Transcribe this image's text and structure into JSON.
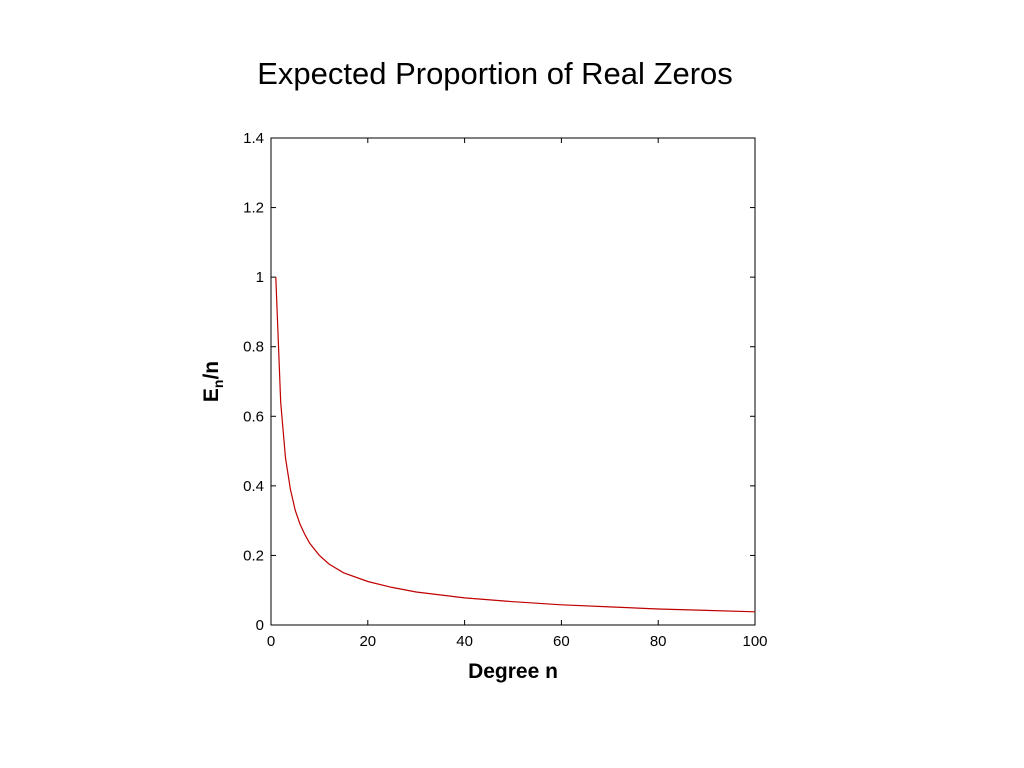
{
  "slide": {
    "title": "Expected Proportion of Real Zeros"
  },
  "chart_data": {
    "type": "line",
    "title": "",
    "xlabel": "Degree n",
    "ylabel": {
      "base": "E",
      "subscript": "n",
      "suffix": "/n"
    },
    "xlim": [
      0,
      100
    ],
    "ylim": [
      0,
      1.4
    ],
    "xticks": [
      0,
      20,
      40,
      60,
      80,
      100
    ],
    "yticks": [
      0,
      0.2,
      0.4,
      0.6,
      0.8,
      1,
      1.2,
      1.4
    ],
    "xtick_labels": [
      "0",
      "20",
      "40",
      "60",
      "80",
      "100"
    ],
    "ytick_labels": [
      "0",
      "0.2",
      "0.4",
      "0.6",
      "0.8",
      "1",
      "1.2",
      "1.4"
    ],
    "grid": false,
    "series": [
      {
        "color": "#c00000",
        "x": [
          1,
          2,
          3,
          4,
          5,
          6,
          7,
          8,
          10,
          12,
          15,
          20,
          25,
          30,
          40,
          50,
          60,
          70,
          80,
          90,
          100
        ],
        "y": [
          1.0,
          0.64,
          0.48,
          0.39,
          0.33,
          0.29,
          0.26,
          0.235,
          0.2,
          0.175,
          0.15,
          0.125,
          0.108,
          0.095,
          0.078,
          0.067,
          0.058,
          0.052,
          0.046,
          0.042,
          0.038
        ]
      }
    ]
  }
}
